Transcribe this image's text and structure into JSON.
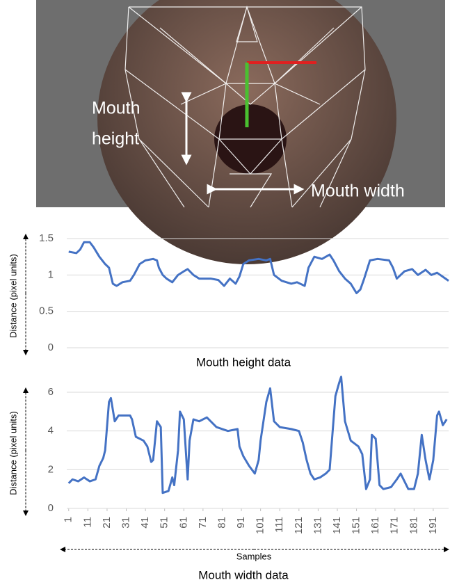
{
  "image": {
    "height_label": [
      "Mouth",
      "height"
    ],
    "width_label": "Mouth width"
  },
  "chart_data": [
    {
      "type": "line",
      "title": "Mouth height data",
      "y_label": "Distance (pixel units)",
      "ylim": [
        0,
        1.5
      ],
      "yticks": [
        0,
        0.5,
        1,
        1.5
      ],
      "xlim": [
        0,
        199
      ],
      "grid": true,
      "x": [
        1,
        5,
        7,
        9,
        12,
        14,
        17,
        20,
        22,
        24,
        26,
        29,
        33,
        35,
        38,
        41,
        45,
        47,
        48,
        50,
        52,
        55,
        58,
        61,
        63,
        66,
        69,
        75,
        79,
        82,
        85,
        88,
        90,
        92,
        95,
        100,
        104,
        106,
        108,
        112,
        117,
        120,
        124,
        126,
        129,
        133,
        137,
        139,
        142,
        145,
        148,
        151,
        153,
        155,
        158,
        162,
        168,
        170,
        172,
        176,
        180,
        183,
        187,
        190,
        193,
        199
      ],
      "series": [
        {
          "color": "#4472c4",
          "values": [
            1.32,
            1.3,
            1.35,
            1.45,
            1.45,
            1.38,
            1.25,
            1.15,
            1.1,
            0.88,
            0.85,
            0.9,
            0.92,
            1.0,
            1.15,
            1.2,
            1.22,
            1.2,
            1.1,
            1.0,
            0.95,
            0.9,
            1.0,
            1.05,
            1.08,
            1.0,
            0.95,
            0.95,
            0.93,
            0.85,
            0.95,
            0.88,
            0.98,
            1.15,
            1.2,
            1.22,
            1.2,
            1.22,
            1.0,
            0.92,
            0.88,
            0.9,
            0.85,
            1.1,
            1.25,
            1.22,
            1.28,
            1.2,
            1.05,
            0.95,
            0.88,
            0.75,
            0.8,
            0.95,
            1.2,
            1.22,
            1.2,
            1.1,
            0.95,
            1.05,
            1.08,
            1.0,
            1.07,
            1.0,
            1.03,
            0.92
          ]
        }
      ]
    },
    {
      "type": "line",
      "title": "Mouth width data",
      "y_label": "Distance (pixel units)",
      "x_label": "Samples",
      "ylim": [
        0,
        6
      ],
      "yticks": [
        0,
        2,
        4,
        6
      ],
      "xlim": [
        0,
        199
      ],
      "xticks": [
        1,
        11,
        21,
        31,
        41,
        51,
        61,
        71,
        81,
        91,
        101,
        111,
        121,
        131,
        141,
        151,
        161,
        171,
        181,
        191
      ],
      "grid": true,
      "x": [
        1,
        3,
        6,
        9,
        12,
        15,
        17,
        19,
        20,
        22,
        23,
        25,
        27,
        33,
        34,
        36,
        40,
        42,
        44,
        45,
        47,
        49,
        50,
        53,
        55,
        56,
        58,
        59,
        61,
        63,
        64,
        66,
        69,
        73,
        78,
        84,
        89,
        90,
        92,
        95,
        98,
        100,
        101,
        104,
        106,
        108,
        111,
        117,
        121,
        123,
        125,
        127,
        129,
        132,
        135,
        137,
        140,
        142,
        143,
        145,
        148,
        152,
        154,
        156,
        158,
        159,
        161,
        163,
        165,
        169,
        172,
        174,
        176,
        178,
        181,
        183,
        185,
        187,
        189,
        191,
        193,
        194,
        196,
        198
      ],
      "series": [
        {
          "color": "#4472c4",
          "values": [
            1.3,
            1.5,
            1.4,
            1.6,
            1.4,
            1.5,
            2.2,
            2.6,
            3.0,
            5.5,
            5.7,
            4.5,
            4.8,
            4.8,
            4.6,
            3.7,
            3.5,
            3.2,
            2.4,
            2.5,
            4.5,
            4.2,
            0.8,
            0.9,
            1.6,
            1.2,
            3.0,
            5.0,
            4.6,
            1.5,
            3.5,
            4.6,
            4.5,
            4.7,
            4.2,
            4.0,
            4.1,
            3.2,
            2.7,
            2.2,
            1.8,
            2.5,
            3.5,
            5.5,
            6.2,
            4.5,
            4.2,
            4.1,
            4.0,
            3.4,
            2.5,
            1.8,
            1.5,
            1.6,
            1.8,
            2.0,
            5.8,
            6.5,
            6.8,
            4.5,
            3.5,
            3.2,
            2.8,
            1.0,
            1.5,
            3.8,
            3.6,
            1.2,
            1.0,
            1.1,
            1.5,
            1.8,
            1.4,
            1.0,
            1.0,
            1.8,
            3.8,
            2.5,
            1.5,
            2.5,
            4.8,
            5.0,
            4.3,
            4.6
          ]
        }
      ]
    }
  ]
}
